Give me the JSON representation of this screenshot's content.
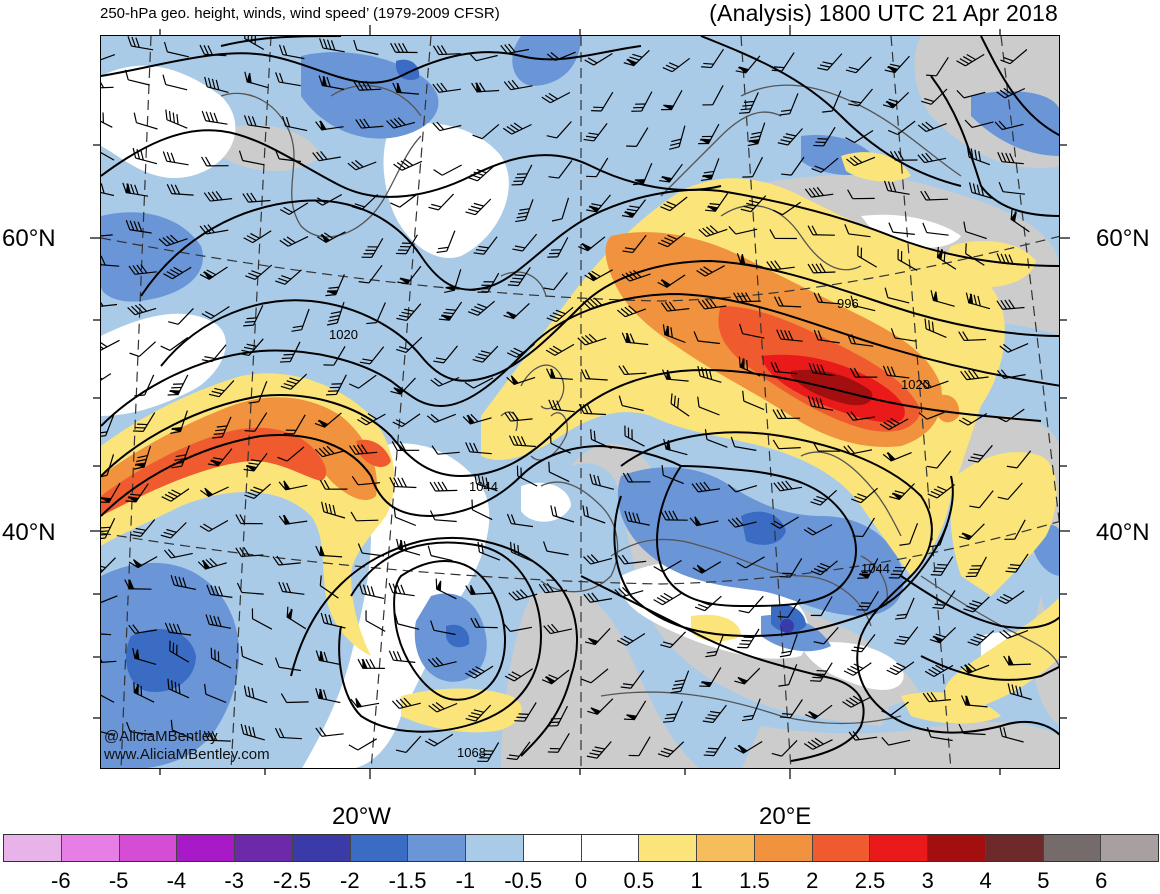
{
  "header": {
    "left_title": "250-hPa geo. height, winds, wind speed’ (1979-2009 CFSR)",
    "right_title": "(Analysis) 1800 UTC 21 Apr 2018"
  },
  "axes": {
    "lat_left": [
      "60°N",
      "40°N"
    ],
    "lat_right": [
      "60°N",
      "40°N"
    ],
    "lon_bottom": [
      "20°W",
      "20°E"
    ]
  },
  "contours": {
    "labels": [
      "1020",
      "996",
      "1020",
      "1044",
      "1044",
      "1068"
    ]
  },
  "credits": {
    "twitter": "@AliciaMBentley",
    "website": "www.AliciaMBentley.com"
  },
  "colorbar": {
    "ticks": [
      "-6",
      "-5",
      "-4",
      "-3",
      "-2.5",
      "-2",
      "-1.5",
      "-1",
      "-0.5",
      "0",
      "0.5",
      "1",
      "1.5",
      "2",
      "2.5",
      "3",
      "4",
      "5",
      "6"
    ],
    "colors": [
      "#e8b3e8",
      "#e67ee6",
      "#d44dd4",
      "#a819c8",
      "#6c2aab",
      "#3a3aa8",
      "#3b6cc4",
      "#6a96d8",
      "#a9cbe8",
      "#ffffff",
      "#ffffff",
      "#fbe57b",
      "#f5bd5c",
      "#f0923e",
      "#ef5b2e",
      "#ea1a1a",
      "#a30f0f",
      "#6e2a2a",
      "#756b6b",
      "#a8a0a0"
    ]
  },
  "legend_colors": {
    "map_background_light_blue": "#a9cbe8",
    "map_medium_blue": "#6a96d8",
    "map_dark_blue": "#3b6cc4",
    "map_yellow": "#fbe57b",
    "map_orange": "#f0923e",
    "map_red": "#ea1a1a",
    "map_dark_red": "#a30f0f",
    "map_gray": "#cccccc"
  }
}
